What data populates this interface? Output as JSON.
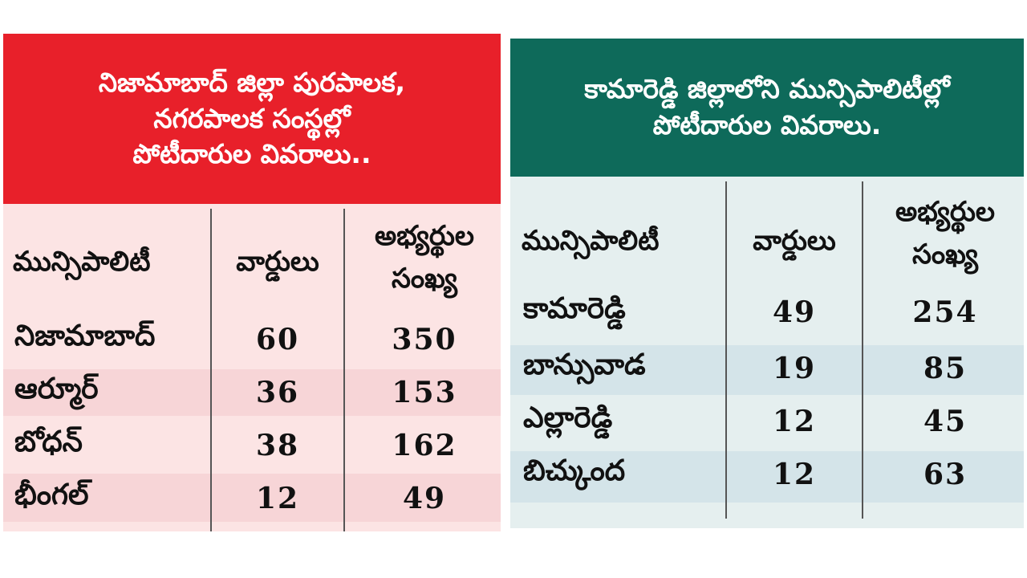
{
  "nizamabad_table": {
    "title_lines": [
      "నిజామాబాద్ జిల్లా పురపాలక,",
      "నగరపాలక సంస్థల్లో",
      "పోటీదారుల వివరాలు.."
    ],
    "col_municipality": "మున్సిపాలిటీ",
    "col_wards": "వార్డులు",
    "col_candidates_1": "అభ్యర్థుల",
    "col_candidates_2": "సంఖ్య",
    "rows": [
      {
        "name": "నిజామాబాద్",
        "wards": "60",
        "candidates": "350"
      },
      {
        "name": "ఆర్మూర్",
        "wards": "36",
        "candidates": "153"
      },
      {
        "name": "బోధన్",
        "wards": "38",
        "candidates": "162"
      },
      {
        "name": "భీంగల్",
        "wards": "12",
        "candidates": "49"
      }
    ],
    "colors": {
      "header": "#e8202a",
      "background": "#fce4e4",
      "band": "#f7d5d7"
    }
  },
  "kamareddy_table": {
    "title_lines": [
      "కామారెడ్డి జిల్లాలోని మున్సిపాలిటీల్లో",
      "పోటీదారుల వివరాలు."
    ],
    "col_municipality": "మున్సిపాలిటీ",
    "col_wards": "వార్డులు",
    "col_candidates_1": "అభ్యర్థుల",
    "col_candidates_2": "సంఖ్య",
    "rows": [
      {
        "name": "కామారెడ్డి",
        "wards": "49",
        "candidates": "254"
      },
      {
        "name": "బాన్సువాడ",
        "wards": "19",
        "candidates": "85"
      },
      {
        "name": "ఎల్లారెడ్డి",
        "wards": "12",
        "candidates": "45"
      },
      {
        "name": "బిచ్కుంద",
        "wards": "12",
        "candidates": "63"
      }
    ],
    "colors": {
      "header": "#0e6a5a",
      "background": "#e5efef",
      "band": "#d4e4e9"
    }
  }
}
